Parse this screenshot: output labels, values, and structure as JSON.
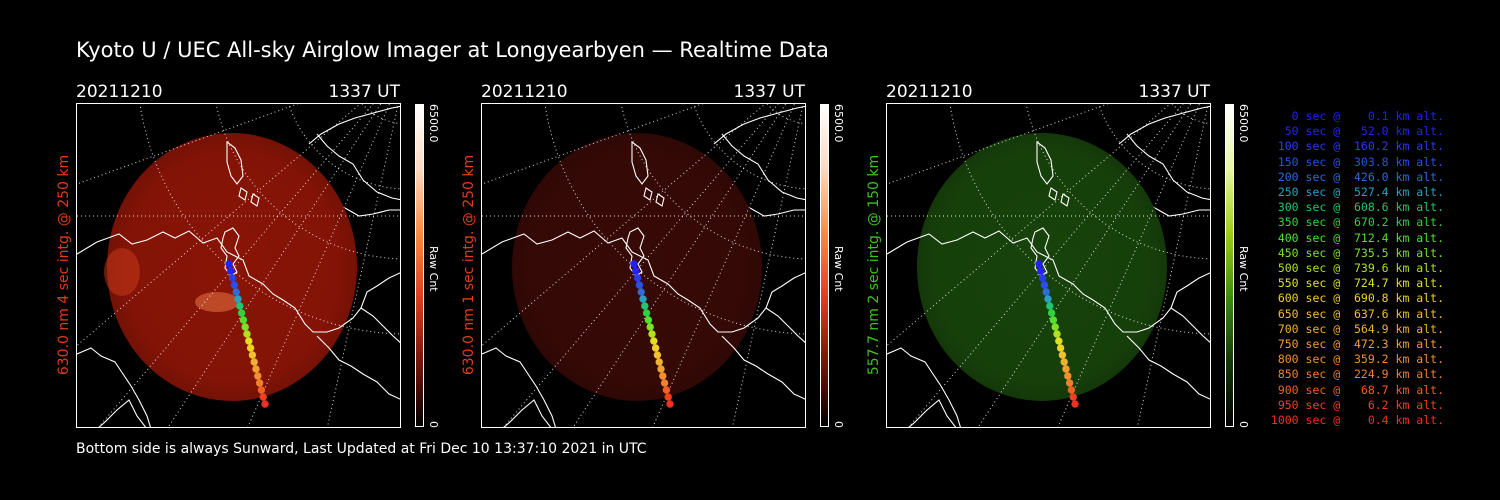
{
  "title": "Kyoto U / UEC All-sky Airglow Imager at Longyearbyen — Realtime Data",
  "footer": "Bottom side is always Sunward, Last Updated at Fri Dec 10 13:37:10 2021 in UTC",
  "panels": [
    {
      "date": "20211210",
      "time": "1337 UT",
      "ylabel": "630.0 nm 4 sec intg. @ 250 km",
      "label_color": "#e03c1c",
      "cbar_max": "6500.0",
      "cbar_min": "0",
      "cbar_label": "Raw Cnt",
      "cbar_gradient": [
        "#ffffff",
        "#ffd9c0",
        "#ff8a3c",
        "#e03c1c",
        "#7a1408",
        "#000000"
      ],
      "emission_color": "#b01a08",
      "brightness": 0.78
    },
    {
      "date": "20211210",
      "time": "1337 UT",
      "ylabel": "630.0 nm 1 sec intg. @ 250 km",
      "label_color": "#e03c1c",
      "cbar_max": "6500.0",
      "cbar_min": "0",
      "cbar_label": "Raw Cnt",
      "cbar_gradient": [
        "#ffffff",
        "#ffd9c0",
        "#ff8a3c",
        "#e03c1c",
        "#7a1408",
        "#000000"
      ],
      "emission_color": "#3a0a06",
      "brightness": 0.95
    },
    {
      "date": "20211210",
      "time": "1337 UT",
      "ylabel": "557.7 nm 2 sec intg. @ 150 km",
      "label_color": "#3cc41c",
      "cbar_max": "6500.0",
      "cbar_min": "0",
      "cbar_label": "Raw Cnt",
      "cbar_gradient": [
        "#ffffff",
        "#e6f7a0",
        "#9ccc1c",
        "#3c8c10",
        "#143a06",
        "#000000"
      ],
      "emission_color": "#1a4a0c",
      "brightness": 0.9
    }
  ],
  "trajectory": [
    {
      "label": "   0 sec @    0.1 km alt.",
      "color": "#2020ff"
    },
    {
      "label": "  50 sec @   52.0 km alt.",
      "color": "#2424f0"
    },
    {
      "label": " 100 sec @  160.2 km alt.",
      "color": "#2a3cf0"
    },
    {
      "label": " 150 sec @  303.8 km alt.",
      "color": "#2a50e8"
    },
    {
      "label": " 200 sec @  426.0 km alt.",
      "color": "#2f6ad8"
    },
    {
      "label": " 250 sec @  527.4 km alt.",
      "color": "#2aa0c0"
    },
    {
      "label": " 300 sec @  608.6 km alt.",
      "color": "#24c470"
    },
    {
      "label": " 350 sec @  670.2 km alt.",
      "color": "#30d040"
    },
    {
      "label": " 400 sec @  712.4 km alt.",
      "color": "#50e030"
    },
    {
      "label": " 450 sec @  735.5 km alt.",
      "color": "#80e028"
    },
    {
      "label": " 500 sec @  739.6 km alt.",
      "color": "#b0e020"
    },
    {
      "label": " 550 sec @  724.7 km alt.",
      "color": "#e0e020"
    },
    {
      "label": " 600 sec @  690.8 km alt.",
      "color": "#f0d020"
    },
    {
      "label": " 650 sec @  637.6 km alt.",
      "color": "#f0c030"
    },
    {
      "label": " 700 sec @  564.9 km alt.",
      "color": "#f0b030"
    },
    {
      "label": " 750 sec @  472.3 km alt.",
      "color": "#f0a030"
    },
    {
      "label": " 800 sec @  359.2 km alt.",
      "color": "#f09030"
    },
    {
      "label": " 850 sec @  224.9 km alt.",
      "color": "#f08030"
    },
    {
      "label": " 900 sec @   68.7 km alt.",
      "color": "#f06020"
    },
    {
      "label": " 950 sec @    6.2 km alt.",
      "color": "#f04020"
    },
    {
      "label": "1000 sec @    0.4 km alt.",
      "color": "#f03020"
    }
  ]
}
